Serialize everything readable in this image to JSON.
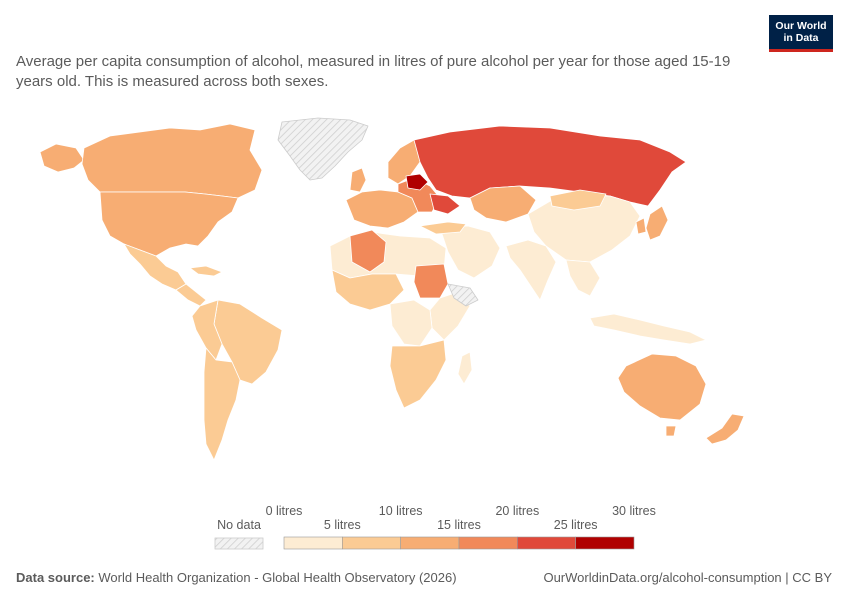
{
  "title": "Average per capita consumption of alcohol, measured in litres of pure alcohol per year for those aged 15-19 years old. This is measured across both sexes.",
  "logo": {
    "line1": "Our World",
    "line2": "in Data"
  },
  "legend": {
    "no_data_label": "No data",
    "top_labels": [
      "0 litres",
      "10 litres",
      "20 litres",
      "30 litres"
    ],
    "bottom_labels": [
      "5 litres",
      "15 litres",
      "25 litres"
    ],
    "bins": [
      {
        "min": 0,
        "max": 5,
        "color": "#fdecd3"
      },
      {
        "min": 5,
        "max": 10,
        "color": "#fbcb94"
      },
      {
        "min": 10,
        "max": 15,
        "color": "#f7ad73"
      },
      {
        "min": 15,
        "max": 20,
        "color": "#f1895a"
      },
      {
        "min": 20,
        "max": 25,
        "color": "#e0493a"
      },
      {
        "min": 25,
        "max": 30,
        "color": "#b00000"
      }
    ]
  },
  "footer": {
    "source_label": "Data source:",
    "source_text": "World Health Organization - Global Health Observatory (2026)",
    "url": "OurWorldinData.org/alcohol-consumption | CC BY"
  },
  "colors": {
    "no_data": "#e8e8e8",
    "border": "#ffffff"
  }
}
